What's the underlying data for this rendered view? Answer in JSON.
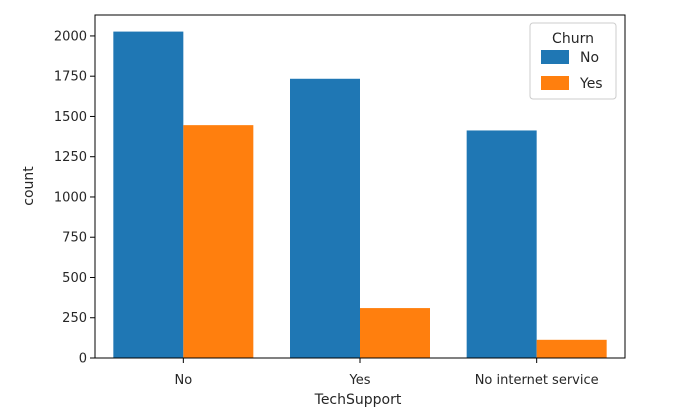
{
  "chart_data": {
    "type": "bar",
    "categories": [
      "No",
      "Yes",
      "No internet service"
    ],
    "series": [
      {
        "name": "No",
        "values": [
          2027,
          1734,
          1413
        ]
      },
      {
        "name": "Yes",
        "values": [
          1446,
          310,
          113
        ]
      }
    ],
    "colors": [
      "#1f77b4",
      "#ff7f0e"
    ],
    "xlabel": "TechSupport",
    "ylabel": "count",
    "ylim": [
      0,
      2130
    ],
    "yticks": [
      0,
      250,
      500,
      750,
      1000,
      1250,
      1500,
      1750,
      2000
    ],
    "legend": {
      "title": "Churn",
      "placement": "top-right"
    },
    "grid": false
  }
}
